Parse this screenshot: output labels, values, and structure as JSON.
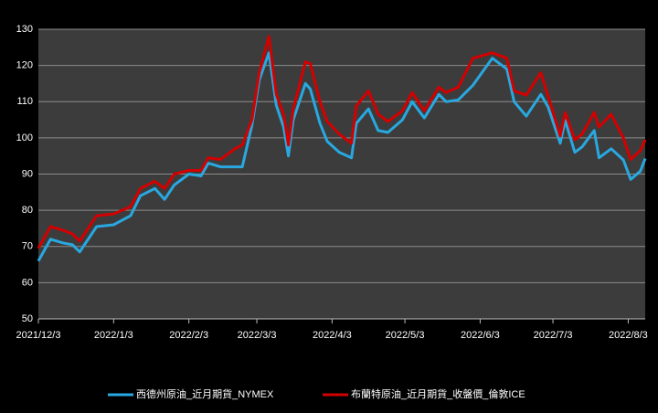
{
  "chart_data": {
    "type": "line",
    "x": [
      "2021/12/3",
      "2021/12/8",
      "2021/12/13",
      "2021/12/17",
      "2021/12/20",
      "2021/12/27",
      "2022/1/3",
      "2022/1/10",
      "2022/1/14",
      "2022/1/20",
      "2022/1/24",
      "2022/1/28",
      "2022/2/3",
      "2022/2/8",
      "2022/2/11",
      "2022/2/16",
      "2022/2/22",
      "2022/2/25",
      "2022/3/1",
      "2022/3/4",
      "2022/3/8",
      "2022/3/11",
      "2022/3/14",
      "2022/3/16",
      "2022/3/18",
      "2022/3/23",
      "2022/3/25",
      "2022/3/29",
      "2022/4/1",
      "2022/4/6",
      "2022/4/11",
      "2022/4/13",
      "2022/4/18",
      "2022/4/22",
      "2022/4/26",
      "2022/5/2",
      "2022/5/6",
      "2022/5/11",
      "2022/5/17",
      "2022/5/20",
      "2022/5/25",
      "2022/5/31",
      "2022/6/8",
      "2022/6/14",
      "2022/6/17",
      "2022/6/22",
      "2022/6/28",
      "2022/7/1",
      "2022/7/6",
      "2022/7/8",
      "2022/7/12",
      "2022/7/15",
      "2022/7/20",
      "2022/7/22",
      "2022/7/27",
      "2022/8/1",
      "2022/8/4",
      "2022/8/8",
      "2022/8/10"
    ],
    "series": [
      {
        "name": "西德州原油_近月期貨_NYMEX",
        "color": "#29a8e0",
        "values": [
          66,
          72,
          71,
          70.5,
          68.5,
          75.5,
          76,
          78.5,
          84,
          86,
          83,
          87,
          90,
          89.5,
          93,
          92,
          92,
          92,
          103.5,
          116,
          123.5,
          109,
          103,
          95,
          105,
          115,
          113.5,
          104,
          99,
          96,
          94.5,
          104,
          108,
          102,
          101.5,
          105,
          110,
          105.5,
          112,
          110,
          110.5,
          114.5,
          122,
          119,
          110,
          106,
          112,
          108.5,
          98.5,
          104.8,
          96,
          97.5,
          102,
          94.5,
          97,
          93.9,
          88.5,
          90.8,
          94.3
        ]
      },
      {
        "name": "布蘭特原油_近月期貨_收盤價_倫敦ICE",
        "color": "#d40000",
        "values": [
          69.5,
          75.5,
          74.5,
          73.5,
          71.5,
          78.5,
          79,
          81,
          86,
          88,
          86,
          90,
          91,
          91,
          94.5,
          94,
          97,
          98,
          105,
          118,
          128,
          112,
          106.5,
          98,
          108,
          121,
          120.5,
          110,
          104.5,
          101,
          98.5,
          108.8,
          113,
          106.5,
          104.5,
          107.5,
          112.5,
          107.5,
          114,
          112.5,
          114,
          122,
          123.5,
          122,
          113,
          111.8,
          118,
          111.5,
          100.5,
          107,
          99.5,
          101,
          107,
          103,
          106.5,
          100,
          94,
          96.5,
          99.5
        ]
      }
    ],
    "xlim": [
      "2021/12/3",
      "2022/8/10"
    ],
    "xticks": [
      "2021/12/3",
      "2022/1/3",
      "2022/2/3",
      "2022/3/3",
      "2022/4/3",
      "2022/5/3",
      "2022/6/3",
      "2022/7/3",
      "2022/8/3"
    ],
    "ylim": [
      50,
      130
    ],
    "yticks": [
      50,
      60,
      70,
      80,
      90,
      100,
      110,
      120,
      130
    ],
    "grid": true
  }
}
